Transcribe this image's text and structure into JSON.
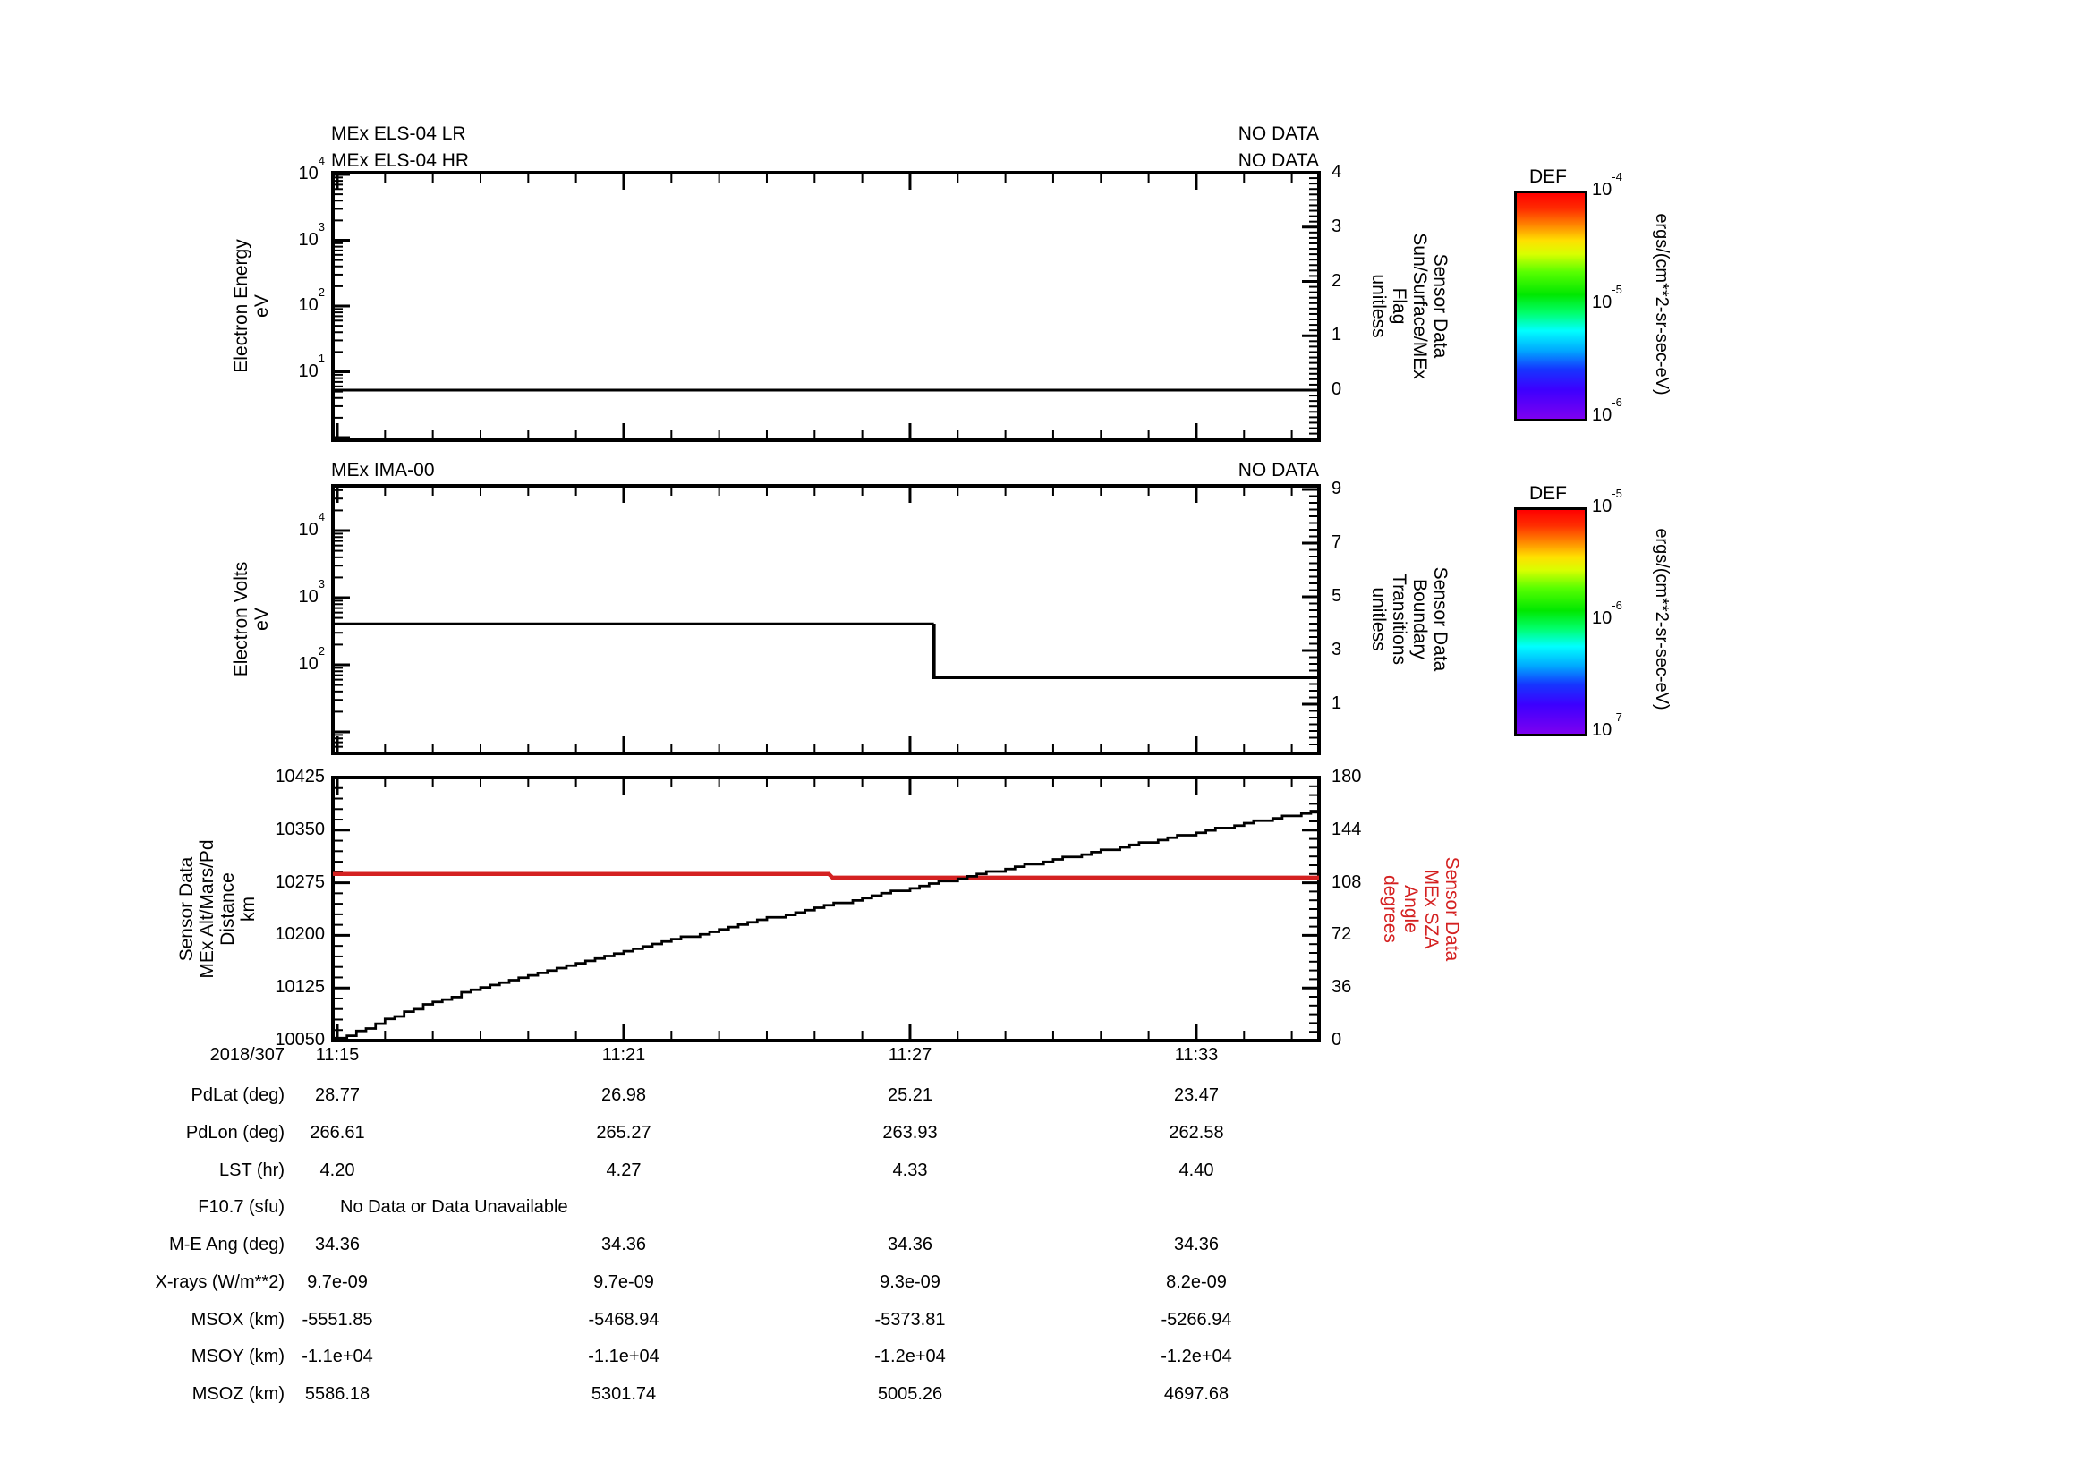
{
  "colors": {
    "red": "#d42121",
    "black": "#000000",
    "background": "#ffffff"
  },
  "x_axis": {
    "date_label": "2018/307",
    "time_labels": [
      "11:15",
      "11:21",
      "11:27",
      "11:33"
    ],
    "minutes_span": 20.6,
    "minutes_per_major_tick": 6
  },
  "panel_els": {
    "title_lr": "MEx ELS-04 LR",
    "title_hr": "MEx ELS-04 HR",
    "no_data_lr": "NO DATA",
    "no_data_hr": "NO DATA",
    "left_axis": {
      "title_lines": [
        "Electron Energy",
        "eV"
      ],
      "tick_exponents": [
        4,
        3,
        2,
        1
      ],
      "scale": "log"
    },
    "right_axis": {
      "title_lines": [
        "Sensor Data",
        "Sun/Surface/MEx",
        "Flag",
        "unitless"
      ],
      "ticks": [
        4,
        3,
        2,
        1,
        0
      ]
    }
  },
  "panel_ima": {
    "title": "MEx IMA-00",
    "no_data": "NO DATA",
    "left_axis": {
      "title_lines": [
        "Electron Volts",
        "eV"
      ],
      "tick_exponents": [
        4,
        3,
        2
      ],
      "scale": "log"
    },
    "right_axis": {
      "title_lines": [
        "Sensor Data",
        "Boundary",
        "Transitions",
        "unitless"
      ],
      "ticks": [
        9,
        7,
        5,
        3,
        1
      ]
    }
  },
  "panel_alt": {
    "left_axis": {
      "title_lines": [
        "Sensor Data",
        "MEx Alt/Mars/Pd",
        "Distance",
        "km"
      ],
      "ticks": [
        10425,
        10350,
        10275,
        10200,
        10125,
        10050
      ]
    },
    "right_axis": {
      "title_lines": [
        "Sensor Data",
        "MEx SZA",
        "Angle",
        "degrees"
      ],
      "ticks": [
        180,
        144,
        108,
        72,
        36,
        0
      ]
    }
  },
  "colorbars": [
    {
      "title": "DEF",
      "tick_exponents": [
        -4,
        -5,
        -6
      ],
      "unit": "ergs/(cm**2-sr-sec-eV)"
    },
    {
      "title": "DEF",
      "tick_exponents": [
        -5,
        -6,
        -7
      ],
      "unit": "ergs/(cm**2-sr-sec-eV)"
    }
  ],
  "table": {
    "rows": [
      {
        "label": "PdLat (deg)",
        "values": [
          "28.77",
          "26.98",
          "25.21",
          "23.47"
        ]
      },
      {
        "label": "PdLon (deg)",
        "values": [
          "266.61",
          "265.27",
          "263.93",
          "262.58"
        ]
      },
      {
        "label": "LST (hr)",
        "values": [
          "4.20",
          "4.27",
          "4.33",
          "4.40"
        ]
      },
      {
        "label": "F10.7 (sfu)",
        "values": [],
        "span_text": "No Data or Data Unavailable"
      },
      {
        "label": "M-E Ang (deg)",
        "values": [
          "34.36",
          "34.36",
          "34.36",
          "34.36"
        ]
      },
      {
        "label": "X-rays (W/m**2)",
        "values": [
          "9.7e-09",
          "9.7e-09",
          "9.3e-09",
          "8.2e-09"
        ]
      },
      {
        "label": "MSOX (km)",
        "values": [
          "-5551.85",
          "-5468.94",
          "-5373.81",
          "-5266.94"
        ]
      },
      {
        "label": "MSOY (km)",
        "values": [
          "-1.1e+04",
          "-1.1e+04",
          "-1.2e+04",
          "-1.2e+04"
        ]
      },
      {
        "label": "MSOZ (km)",
        "values": [
          "5586.18",
          "5301.74",
          "5005.26",
          "4697.68"
        ]
      }
    ]
  },
  "chart_data": [
    {
      "type": "line",
      "title": "MEx ELS-04 LR / MEx ELS-04 HR",
      "status": "NO DATA (empty spectrogram)",
      "x_range": [
        "11:15",
        "11:35.6"
      ],
      "date": "2018/307",
      "y_left": {
        "label": "Electron Energy (eV)",
        "scale": "log",
        "range": [
          1,
          10000
        ],
        "tick_exponents": [
          1,
          2,
          3,
          4
        ]
      },
      "y_right": {
        "label": "Sensor Data Sun/Surface/MEx Flag (unitless)",
        "range": [
          0,
          4
        ],
        "ticks": [
          0,
          1,
          2,
          3,
          4
        ]
      },
      "series": [
        {
          "name": "Sun/Surface/MEx Flag",
          "axis": "right",
          "color": "#000000",
          "points_min_value": [
            [
              0,
              0
            ],
            [
              20.6,
              0
            ]
          ]
        }
      ]
    },
    {
      "type": "line",
      "title": "MEx IMA-00",
      "status": "NO DATA (empty spectrogram)",
      "x_range": [
        "11:15",
        "11:35.6"
      ],
      "y_left": {
        "label": "Electron Volts (eV)",
        "scale": "log",
        "range": [
          5,
          47000
        ],
        "tick_exponents": [
          2,
          3,
          4
        ]
      },
      "y_right": {
        "label": "Sensor Data Boundary Transitions (unitless)",
        "range": [
          0,
          9
        ],
        "ticks": [
          1,
          3,
          5,
          7,
          9
        ]
      },
      "series": [
        {
          "name": "Boundary Transitions",
          "axis": "right",
          "color": "#000000",
          "style": "step",
          "points_min_value": [
            [
              0,
              4
            ],
            [
              12.5,
              4
            ],
            [
              12.5,
              2
            ],
            [
              20.6,
              2
            ]
          ]
        }
      ]
    },
    {
      "type": "line",
      "title": "MEx altitude and solar zenith angle",
      "x_range": [
        "11:15",
        "11:35.6"
      ],
      "y_left": {
        "label": "Sensor Data MEx Alt/Mars/Pd Distance (km)",
        "range": [
          10050,
          10425
        ],
        "tick_step": 75
      },
      "y_right": {
        "label": "Sensor Data MEx SZA Angle (degrees)",
        "range": [
          0,
          180
        ],
        "tick_step": 36
      },
      "series": [
        {
          "name": "MEx Alt/Mars/Pd Distance",
          "axis": "left",
          "color": "#000000",
          "style": "staircase",
          "points_min_value": [
            [
              0,
              10053
            ],
            [
              2,
              10106
            ],
            [
              4,
              10144
            ],
            [
              6,
              10178
            ],
            [
              8,
              10209
            ],
            [
              10,
              10239
            ],
            [
              12,
              10268
            ],
            [
              14,
              10295
            ],
            [
              16,
              10321
            ],
            [
              18,
              10347
            ],
            [
              20,
              10372
            ],
            [
              20.6,
              10380
            ]
          ]
        },
        {
          "name": "MEx SZA Angle",
          "axis": "right",
          "color": "#d42121",
          "style": "step",
          "points_min_value": [
            [
              0,
              114
            ],
            [
              10.3,
              114
            ],
            [
              10.3,
              111.5
            ],
            [
              20.6,
              111.5
            ]
          ]
        }
      ]
    }
  ]
}
